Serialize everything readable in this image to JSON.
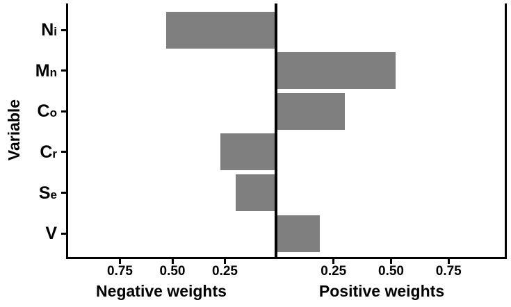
{
  "chart_data": {
    "type": "bar",
    "orientation": "horizontal",
    "diverging": true,
    "ylabel": "Variable",
    "xlabel_left": "Negative weights",
    "xlabel_right": "Positive weights",
    "categories": [
      "Ni",
      "Mn",
      "Co",
      "Cr",
      "Se",
      "V"
    ],
    "values": [
      -0.53,
      0.52,
      0.3,
      -0.27,
      -0.2,
      0.19
    ],
    "xticks_left": [
      "0.75",
      "0.50",
      "0.25"
    ],
    "xticks_right": [
      "0.25",
      "0.50",
      "0.75"
    ],
    "xlim_each_side": [
      0,
      1.0
    ],
    "grid": "off",
    "legend": "none",
    "bar_color": "#7f7f7f",
    "axis_color": "#000000",
    "text_color": "#000000",
    "background_color": "#ffffff"
  }
}
